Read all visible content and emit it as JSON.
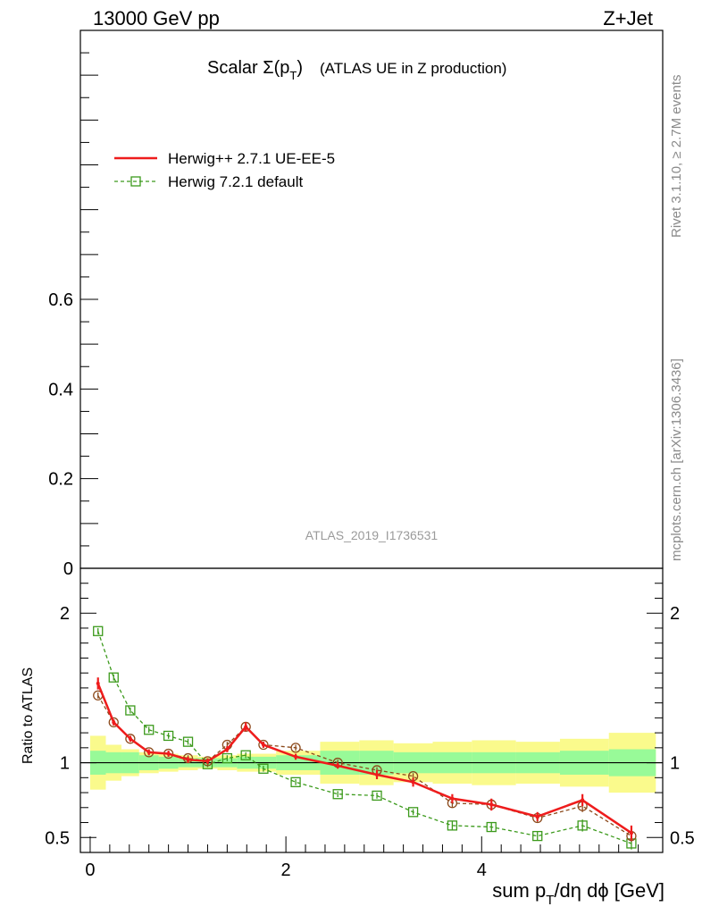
{
  "header": {
    "left": "13000 GeV pp",
    "right": "Z+Jet"
  },
  "title": {
    "main": "Scalar Σ(p",
    "sub": "T",
    "close": ")",
    "rest": "(ATLAS UE in Z production)"
  },
  "legend": {
    "items": [
      {
        "label": "Herwig++ 2.7.1 UE-EE-5",
        "color": "#ee1c1c",
        "style": "solid"
      },
      {
        "label": "Herwig 7.2.1 default",
        "color": "#3c9a1c",
        "style": "dashed-square"
      }
    ]
  },
  "side": {
    "rivet": "Rivet 3.1.10, ≥ 2.7M events",
    "mcplots": "mcplots.cern.ch [arXiv:1306.3436]"
  },
  "watermark": "ATLAS_2019_I1736531",
  "ratio_ylabel": "Ratio to ATLAS",
  "xlabel": {
    "pre": "sum p",
    "sub": "T",
    "post": "/dη dϕ [GeV]"
  },
  "colors": {
    "red": "#ee1c1c",
    "green": "#3c9a1c",
    "brown": "#8c4a1c",
    "band_outer": "#fafa8c",
    "band_inner": "#98fa98"
  },
  "chart_data": [
    {
      "type": "line",
      "panel": "main",
      "y_tick_labels": [
        "0",
        "0.2",
        "0.4",
        "0.6"
      ],
      "ylim": [
        0,
        1.2
      ]
    },
    {
      "type": "line",
      "panel": "ratio",
      "xlim": [
        -0.1,
        5.85
      ],
      "ylim": [
        0.4,
        2.3
      ],
      "x_ticks": [
        0,
        2,
        4
      ],
      "y_ticks": [
        0.5,
        1,
        2
      ],
      "reference": 1,
      "bins": [
        {
          "x0": 0.0,
          "x1": 0.16,
          "in": 0.08,
          "out": 0.18
        },
        {
          "x0": 0.16,
          "x1": 0.32,
          "in": 0.07,
          "out": 0.12
        },
        {
          "x0": 0.32,
          "x1": 0.5,
          "in": 0.07,
          "out": 0.09
        },
        {
          "x0": 0.5,
          "x1": 0.7,
          "in": 0.05,
          "out": 0.07
        },
        {
          "x0": 0.7,
          "x1": 0.9,
          "in": 0.04,
          "out": 0.06
        },
        {
          "x0": 0.9,
          "x1": 1.1,
          "in": 0.03,
          "out": 0.05
        },
        {
          "x0": 1.1,
          "x1": 1.3,
          "in": 0.03,
          "out": 0.04
        },
        {
          "x0": 1.3,
          "x1": 1.5,
          "in": 0.03,
          "out": 0.05
        },
        {
          "x0": 1.5,
          "x1": 1.68,
          "in": 0.04,
          "out": 0.06
        },
        {
          "x0": 1.68,
          "x1": 1.9,
          "in": 0.04,
          "out": 0.06
        },
        {
          "x0": 1.9,
          "x1": 2.35,
          "in": 0.05,
          "out": 0.08
        },
        {
          "x0": 2.35,
          "x1": 2.75,
          "in": 0.08,
          "out": 0.14
        },
        {
          "x0": 2.75,
          "x1": 3.1,
          "in": 0.08,
          "out": 0.15
        },
        {
          "x0": 3.1,
          "x1": 3.5,
          "in": 0.07,
          "out": 0.13
        },
        {
          "x0": 3.5,
          "x1": 3.9,
          "in": 0.07,
          "out": 0.14
        },
        {
          "x0": 3.9,
          "x1": 4.35,
          "in": 0.07,
          "out": 0.15
        },
        {
          "x0": 4.35,
          "x1": 4.8,
          "in": 0.07,
          "out": 0.14
        },
        {
          "x0": 4.8,
          "x1": 5.3,
          "in": 0.08,
          "out": 0.16
        },
        {
          "x0": 5.3,
          "x1": 5.78,
          "in": 0.09,
          "out": 0.2
        }
      ],
      "series": [
        {
          "name": "Herwig++ 2.7.1 UE-EE-5",
          "color": "#ee1c1c",
          "x": [
            0.08,
            0.24,
            0.41,
            0.6,
            0.8,
            1.0,
            1.2,
            1.4,
            1.59,
            1.77,
            2.1,
            2.53,
            2.93,
            3.3,
            3.7,
            4.1,
            4.57,
            5.03,
            5.53
          ],
          "y": [
            1.53,
            1.27,
            1.16,
            1.07,
            1.06,
            1.02,
            1.01,
            1.09,
            1.24,
            1.12,
            1.04,
            0.98,
            0.92,
            0.87,
            0.76,
            0.72,
            0.64,
            0.75,
            0.53
          ],
          "err": [
            0.04,
            0.02,
            0.02,
            0.02,
            0.02,
            0.02,
            0.02,
            0.02,
            0.03,
            0.02,
            0.02,
            0.02,
            0.03,
            0.03,
            0.03,
            0.04,
            0.03,
            0.04,
            0.05
          ]
        },
        {
          "name": "",
          "color": "#8c4a1c",
          "x": [
            0.08,
            0.24,
            0.41,
            0.6,
            0.8,
            1.0,
            1.2,
            1.4,
            1.59,
            1.77,
            2.1,
            2.53,
            2.93,
            3.3,
            3.7,
            4.1,
            4.57,
            5.03,
            5.53
          ],
          "y": [
            1.45,
            1.27,
            1.16,
            1.07,
            1.06,
            1.03,
            1.01,
            1.12,
            1.24,
            1.12,
            1.1,
            1.0,
            0.95,
            0.91,
            0.73,
            0.72,
            0.63,
            0.71,
            0.51
          ],
          "err": [
            0.02,
            0.02,
            0.02,
            0.02,
            0.02,
            0.02,
            0.02,
            0.02,
            0.02,
            0.02,
            0.02,
            0.02,
            0.02,
            0.02,
            0.03,
            0.03,
            0.03,
            0.04,
            0.04
          ]
        },
        {
          "name": "Herwig 7.2.1 default",
          "color": "#3c9a1c",
          "x": [
            0.08,
            0.24,
            0.41,
            0.6,
            0.8,
            1.0,
            1.2,
            1.4,
            1.59,
            1.77,
            2.1,
            2.53,
            2.93,
            3.3,
            3.7,
            4.1,
            4.57,
            5.03,
            5.53
          ],
          "y": [
            1.88,
            1.57,
            1.35,
            1.22,
            1.18,
            1.14,
            0.99,
            1.03,
            1.05,
            0.96,
            0.87,
            0.79,
            0.78,
            0.67,
            0.58,
            0.57,
            0.51,
            0.58,
            0.46
          ],
          "err": [
            0.02,
            0.02,
            0.02,
            0.02,
            0.02,
            0.02,
            0.02,
            0.02,
            0.02,
            0.02,
            0.02,
            0.02,
            0.02,
            0.02,
            0.03,
            0.03,
            0.03,
            0.04,
            0.04
          ]
        }
      ]
    }
  ]
}
